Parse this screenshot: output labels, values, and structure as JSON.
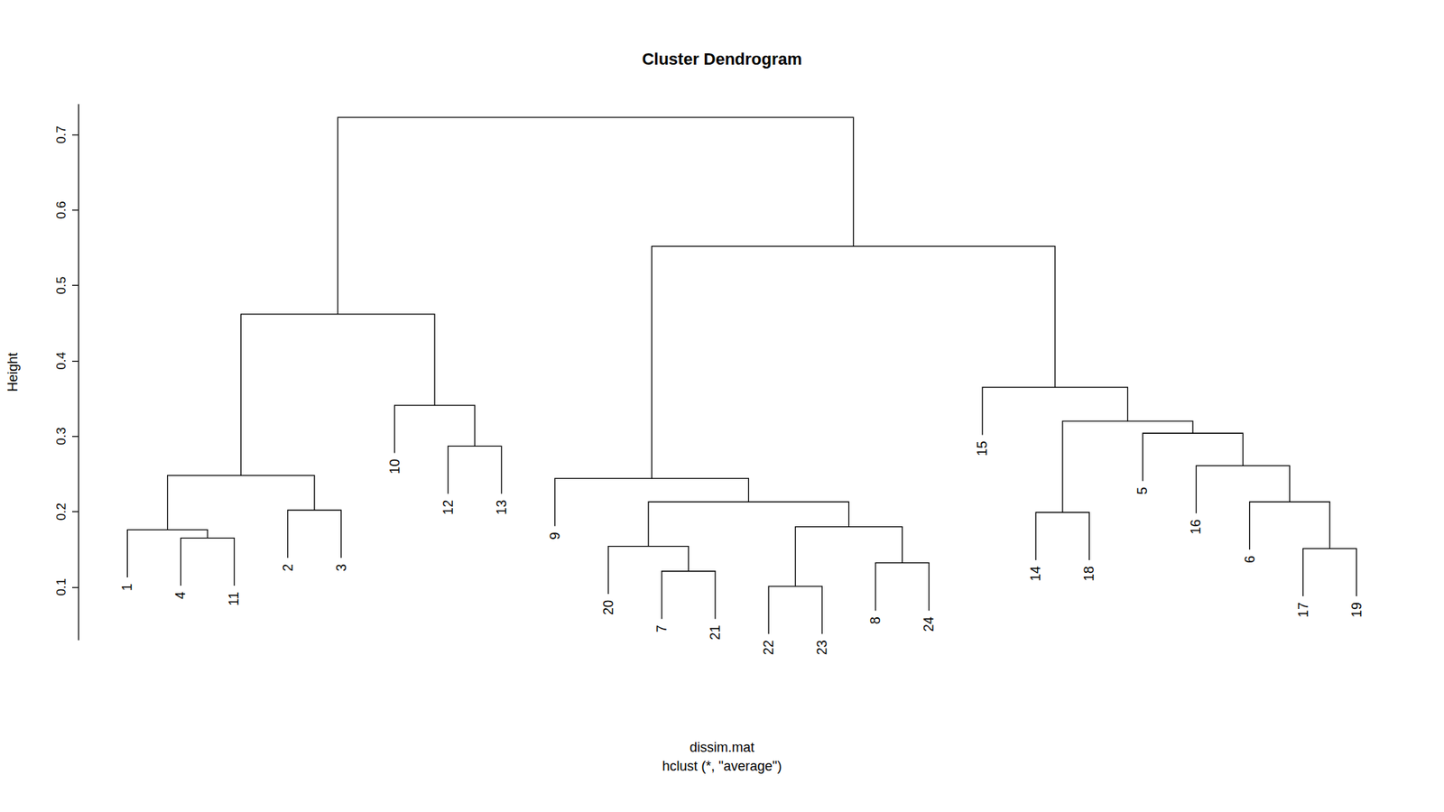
{
  "chart_data": {
    "type": "dendrogram",
    "title": "Cluster Dendrogram",
    "ylabel": "Height",
    "xlabel": "dissim.mat",
    "subtitle": "hclust (*, \"average\")",
    "ylim": [
      0.03,
      0.74
    ],
    "yticks": [
      0.1,
      0.2,
      0.3,
      0.4,
      0.5,
      0.6,
      0.7
    ],
    "tick_labels": "y",
    "color": "#000000",
    "tree": {
      "height": 0.723,
      "children": [
        {
          "height": 0.462,
          "children": [
            {
              "height": 0.248,
              "children": [
                {
                  "height": 0.176,
                  "children": [
                    {
                      "label": "1"
                    },
                    {
                      "height": 0.165,
                      "children": [
                        {
                          "label": "4"
                        },
                        {
                          "label": "11"
                        }
                      ]
                    }
                  ]
                },
                {
                  "height": 0.202,
                  "children": [
                    {
                      "label": "2"
                    },
                    {
                      "label": "3"
                    }
                  ]
                }
              ]
            },
            {
              "height": 0.341,
              "children": [
                {
                  "label": "10"
                },
                {
                  "height": 0.287,
                  "children": [
                    {
                      "label": "12"
                    },
                    {
                      "label": "13"
                    }
                  ]
                }
              ]
            }
          ]
        },
        {
          "height": 0.552,
          "children": [
            {
              "height": 0.244,
              "children": [
                {
                  "label": "9"
                },
                {
                  "height": 0.213,
                  "children": [
                    {
                      "height": 0.154,
                      "children": [
                        {
                          "label": "20"
                        },
                        {
                          "height": 0.121,
                          "children": [
                            {
                              "label": "7"
                            },
                            {
                              "label": "21"
                            }
                          ]
                        }
                      ]
                    },
                    {
                      "height": 0.18,
                      "children": [
                        {
                          "height": 0.101,
                          "children": [
                            {
                              "label": "22"
                            },
                            {
                              "label": "23"
                            }
                          ]
                        },
                        {
                          "height": 0.132,
                          "children": [
                            {
                              "label": "8"
                            },
                            {
                              "label": "24"
                            }
                          ]
                        }
                      ]
                    }
                  ]
                }
              ]
            },
            {
              "height": 0.365,
              "children": [
                {
                  "label": "15"
                },
                {
                  "height": 0.32,
                  "children": [
                    {
                      "height": 0.199,
                      "children": [
                        {
                          "label": "14"
                        },
                        {
                          "label": "18"
                        }
                      ]
                    },
                    {
                      "height": 0.304,
                      "children": [
                        {
                          "label": "5"
                        },
                        {
                          "height": 0.261,
                          "children": [
                            {
                              "label": "16"
                            },
                            {
                              "height": 0.213,
                              "children": [
                                {
                                  "label": "6"
                                },
                                {
                                  "height": 0.151,
                                  "children": [
                                    {
                                      "label": "17"
                                    },
                                    {
                                      "label": "19"
                                    }
                                  ]
                                }
                              ]
                            }
                          ]
                        }
                      ]
                    }
                  ]
                }
              ]
            }
          ]
        }
      ]
    }
  }
}
